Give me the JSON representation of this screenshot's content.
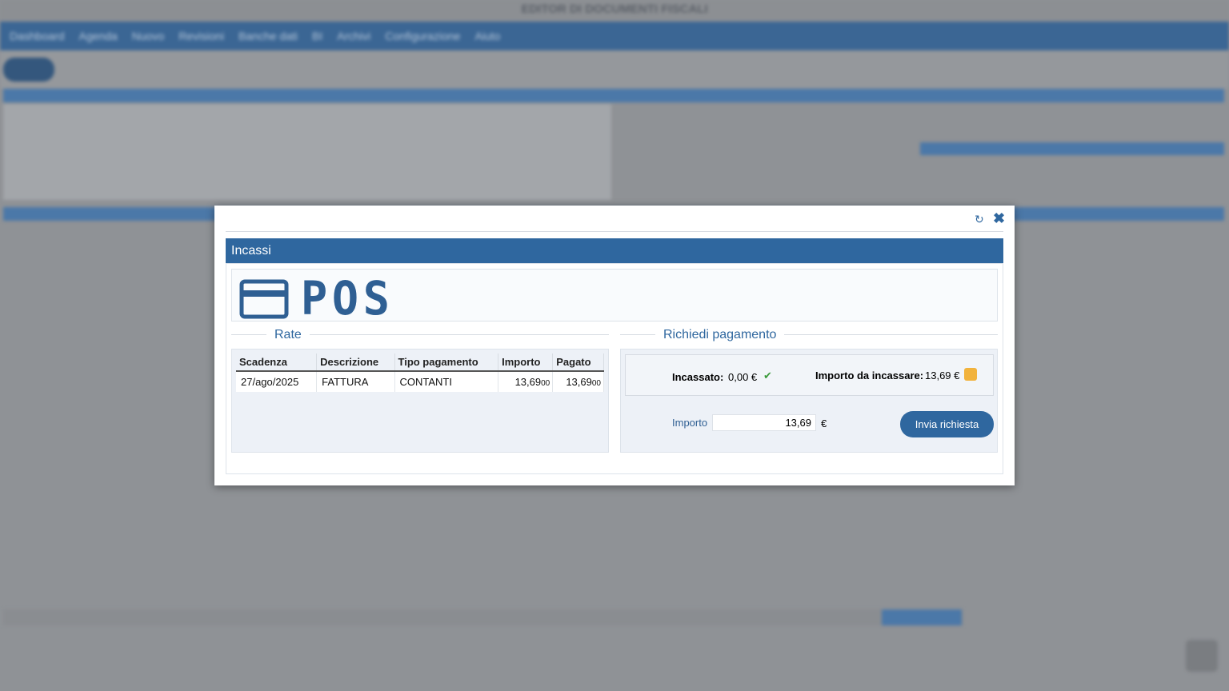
{
  "window": {
    "title": "EDITOR DI DOCUMENTI FISCALI",
    "menu": [
      "Dashboard",
      "Agenda",
      "Nuovo",
      "Revisioni",
      "Banche dati",
      "BI",
      "Archivi",
      "Configurazione",
      "Aiuto"
    ]
  },
  "dialog": {
    "title": "Incassi",
    "logo_text": "POS",
    "rate": {
      "legend": "Rate",
      "columns": [
        "Scadenza",
        "Descrizione",
        "Tipo pagamento",
        "Importo",
        "Pagato"
      ],
      "rows": [
        [
          "27/ago/2025",
          "FATTURA",
          "CONTANTI",
          {
            "main": "13,69",
            "dec": "00"
          },
          {
            "main": "13,69",
            "dec": "00"
          }
        ]
      ]
    },
    "payment": {
      "legend": "Richiedi pagamento",
      "collected_label": "Incassato:",
      "collected_value": "0,00 €",
      "due_label": "Importo da incassare:",
      "due_value": "13,69 €",
      "amount_label": "Importo",
      "amount_input": "13,69",
      "currency": "€",
      "button": "Invia richiesta"
    }
  }
}
